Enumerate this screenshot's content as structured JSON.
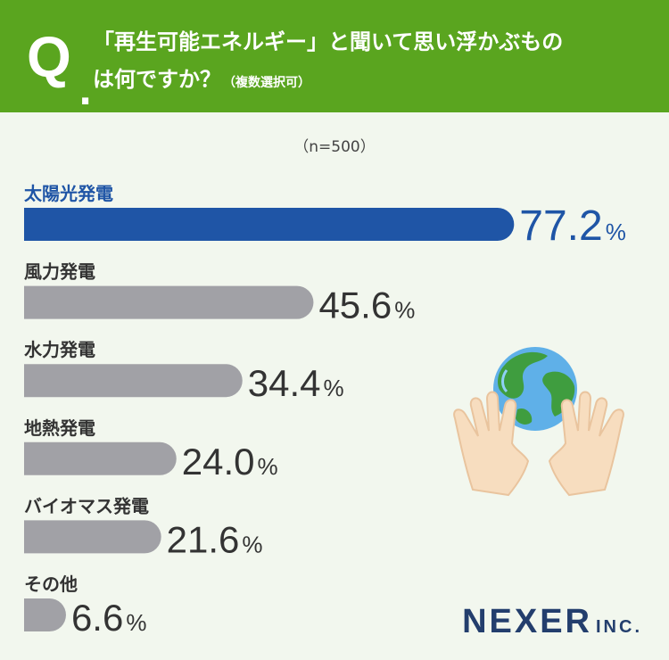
{
  "question": {
    "mark": "Q",
    "dot": ".",
    "line1": "「再生可能エネルギー」と聞いて思い浮かぶもの",
    "line2": "は何ですか？",
    "note": "（複数選択可）"
  },
  "sample_label": "（n=500）",
  "logo": {
    "main": "NEXER",
    "suffix": "INC."
  },
  "colors": {
    "highlight": "#1f55a6",
    "bar": "#a1a1a6",
    "header": "#5aa51f",
    "background": "#f2f7ee",
    "logo": "#233e6d"
  },
  "chart_data": {
    "type": "bar",
    "orientation": "horizontal",
    "categories": [
      "太陽光発電",
      "風力発電",
      "水力発電",
      "地熱発電",
      "バイオマス発電",
      "その他"
    ],
    "values": [
      77.2,
      45.6,
      34.4,
      24.0,
      21.6,
      6.6
    ],
    "value_labels": [
      "77.2",
      "45.6",
      "34.4",
      "24.0",
      "21.6",
      "6.6"
    ],
    "unit": "%",
    "highlighted_index": 0,
    "xlim": [
      0,
      100
    ],
    "grid": false,
    "legend": "none"
  }
}
